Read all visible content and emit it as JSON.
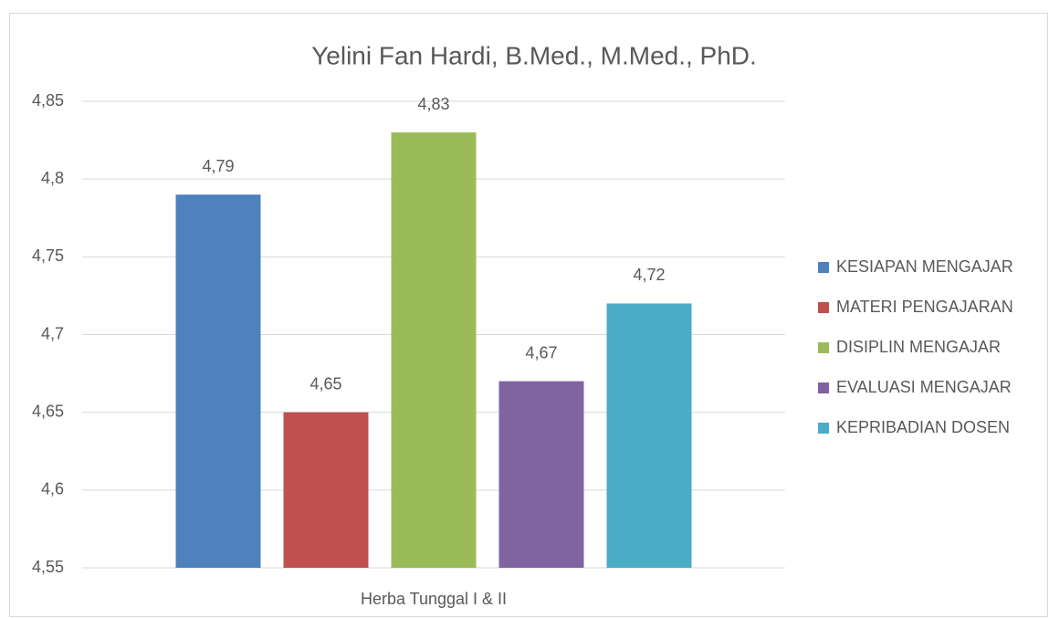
{
  "chart_data": {
    "type": "bar",
    "title": "Yelini Fan Hardi, B.Med., M.Med., PhD.",
    "categories": [
      "Herba Tunggal I & II"
    ],
    "series": [
      {
        "name": "KESIAPAN MENGAJAR",
        "color": "#4f81bd",
        "values": [
          4.79
        ],
        "value_labels": [
          "4,79"
        ]
      },
      {
        "name": "MATERI PENGAJARAN",
        "color": "#c0504d",
        "values": [
          4.65
        ],
        "value_labels": [
          "4,65"
        ]
      },
      {
        "name": "DISIPLIN MENGAJAR",
        "color": "#9bbb59",
        "values": [
          4.83
        ],
        "value_labels": [
          "4,83"
        ]
      },
      {
        "name": "EVALUASI MENGAJAR",
        "color": "#8064a2",
        "values": [
          4.67
        ],
        "value_labels": [
          "4,67"
        ]
      },
      {
        "name": "KEPRIBADIAN DOSEN",
        "color": "#4bacc6",
        "values": [
          4.72
        ],
        "value_labels": [
          "4,72"
        ]
      }
    ],
    "ylim": [
      4.55,
      4.85
    ],
    "yticks": [
      {
        "value": 4.55,
        "label": "4,55"
      },
      {
        "value": 4.6,
        "label": "4,6"
      },
      {
        "value": 4.65,
        "label": "4,65"
      },
      {
        "value": 4.7,
        "label": "4,7"
      },
      {
        "value": 4.75,
        "label": "4,75"
      },
      {
        "value": 4.8,
        "label": "4,8"
      },
      {
        "value": 4.85,
        "label": "4,85"
      }
    ],
    "grid": true,
    "legend": "right"
  }
}
